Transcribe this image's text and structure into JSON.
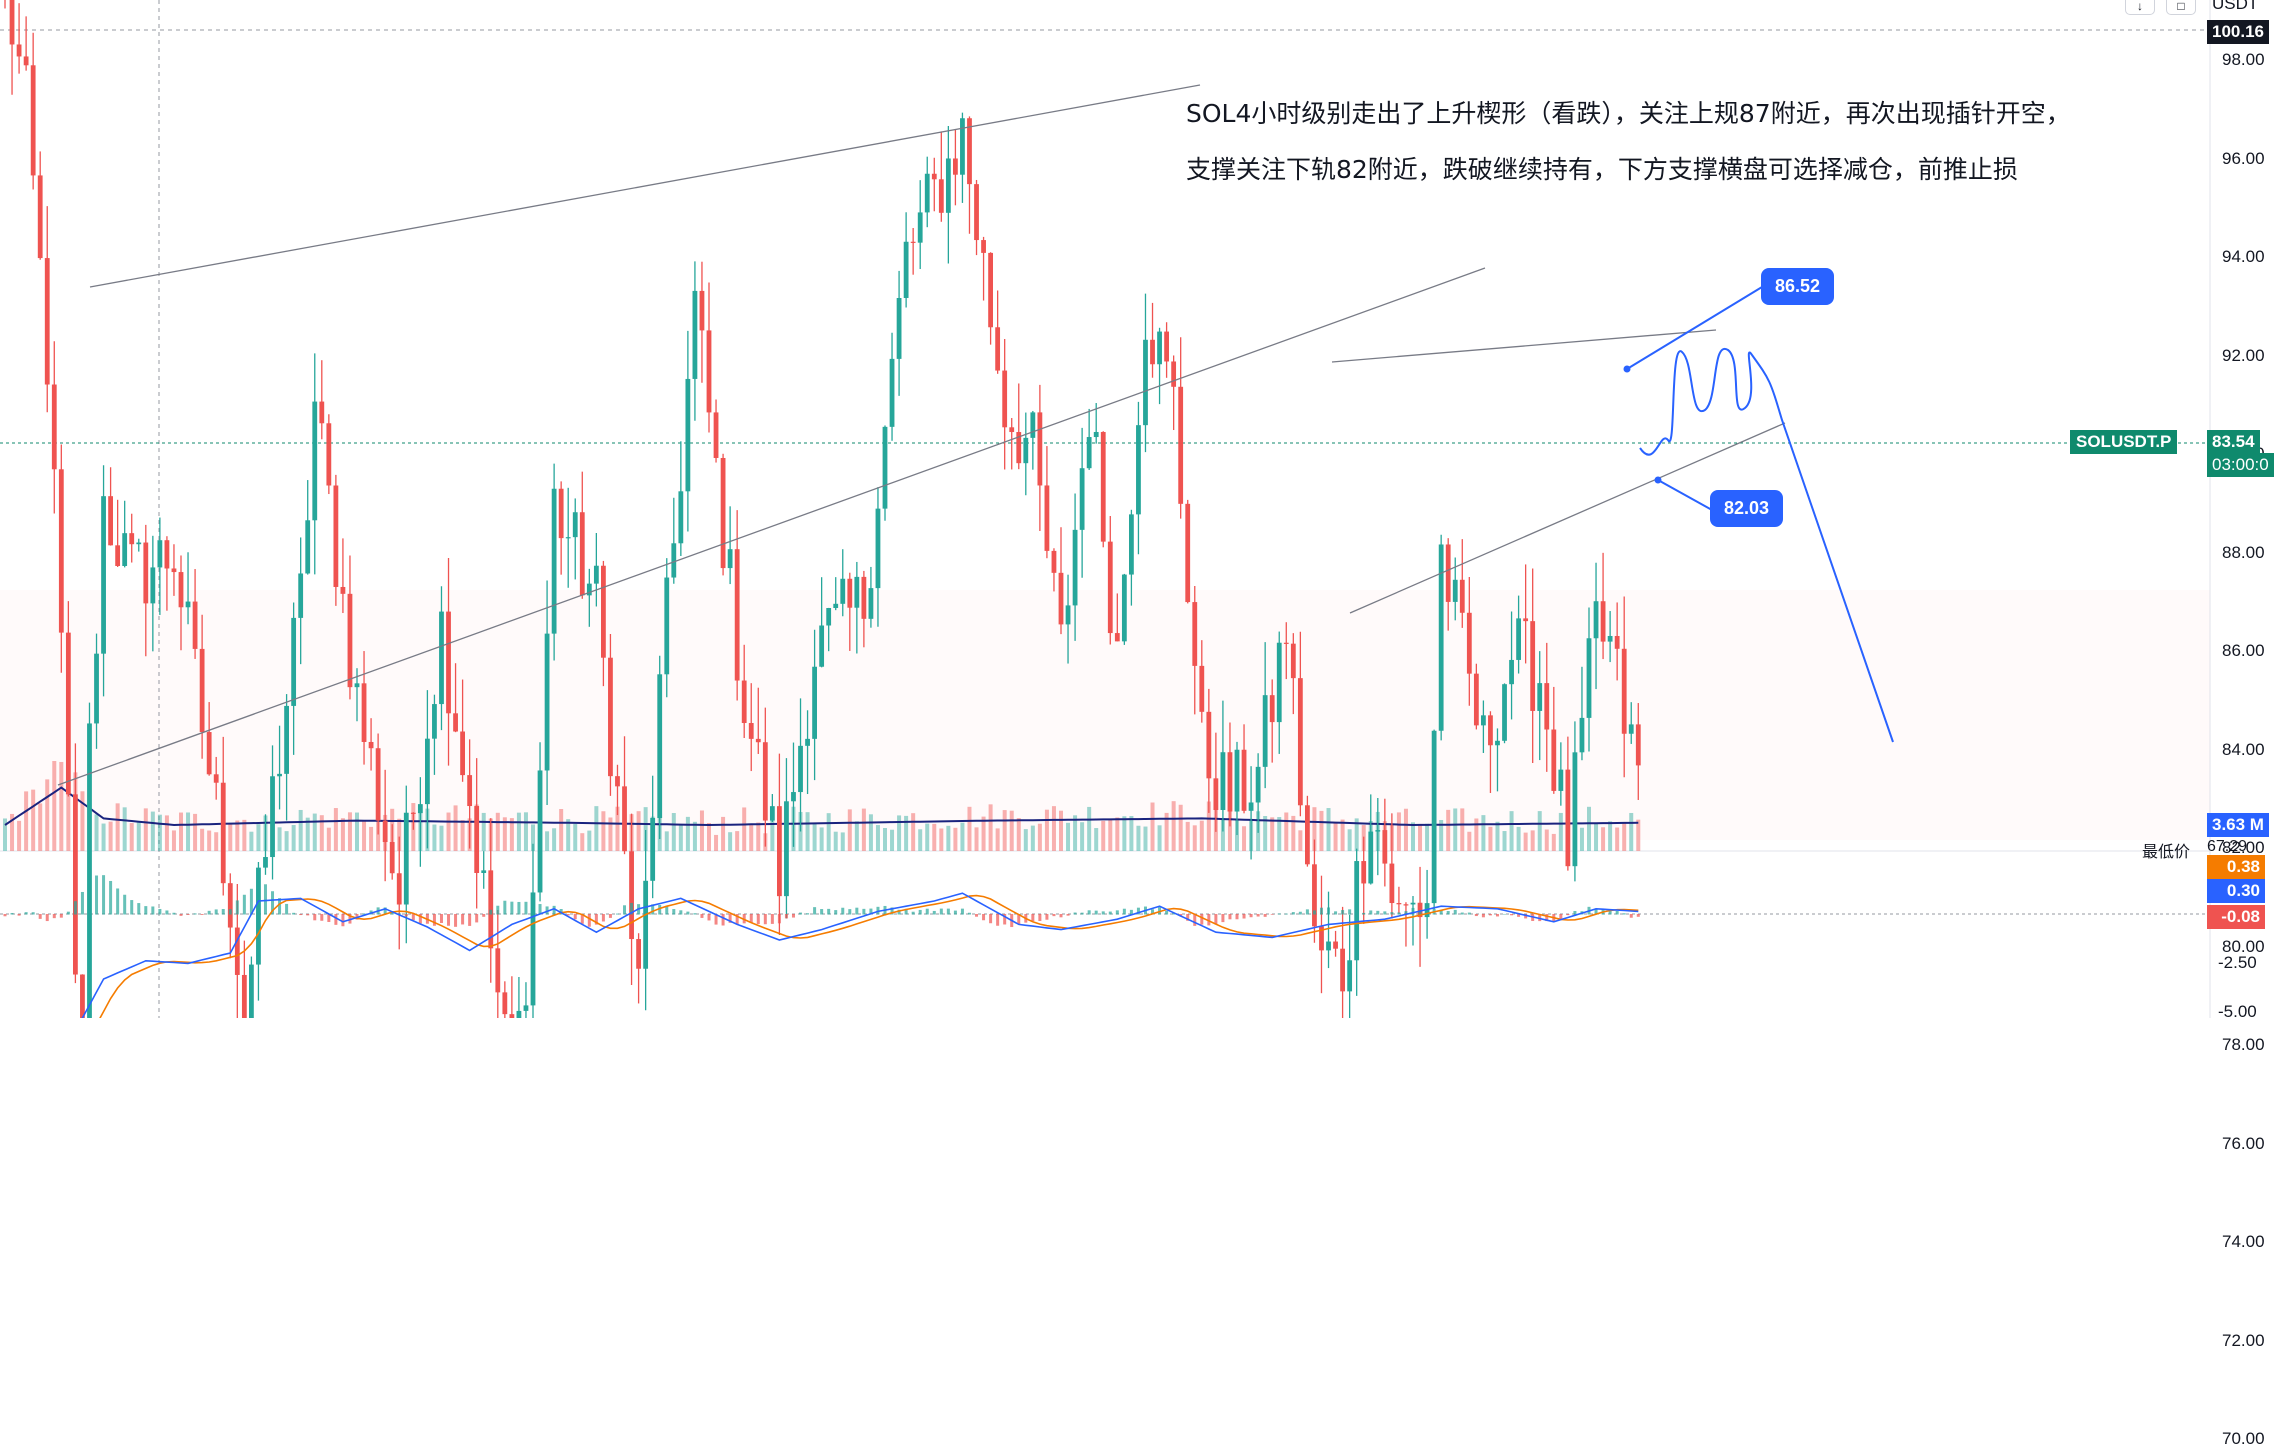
{
  "colors": {
    "up": "#26a69a",
    "down": "#ef5350",
    "line": "#2962ff",
    "macd_signal": "#f57c00",
    "price_tag": "#0f8a6d",
    "last_tag": "#000000"
  },
  "toolbar": {
    "currency": "USDT"
  },
  "annotation": {
    "line1": "SOL4小时级别走出了上升楔形（看跌），关注上规87附近，再次出现插针开空，",
    "line2": "支撑关注下轨82附近，跌破继续持有，下方支撑横盘可选择减仓，前推止损"
  },
  "callouts": {
    "upper": "86.52",
    "lower": "82.03"
  },
  "price_tags": {
    "top_price": "100.16",
    "symbol": "SOLUSDT.P",
    "price": "83.54",
    "countdown": "03:00:0",
    "volume": "3.63 M",
    "low_label": "最低价",
    "low_value": "67.29",
    "macd_hist": "0.38",
    "macd_line": "0.30",
    "macd_signal": "-0.08"
  },
  "price_axis_ticks": [
    "98.00",
    "96.00",
    "94.00",
    "92.00",
    "90.00",
    "88.00",
    "86.00",
    "84.00",
    "82.00",
    "80.00",
    "78.00",
    "76.00",
    "74.00",
    "72.00",
    "70.00"
  ],
  "macd_axis_ticks": [
    "-2.50",
    "-5.00"
  ],
  "chart_data": {
    "type": "candlestick",
    "symbol": "SOLUSDT.P",
    "ylim": [
      69,
      100.5
    ],
    "count": 260,
    "close_anchors": [
      [
        0,
        99.5
      ],
      [
        3,
        97
      ],
      [
        6,
        92
      ],
      [
        8,
        86
      ],
      [
        10,
        79
      ],
      [
        11,
        77.5
      ],
      [
        12,
        84
      ],
      [
        14,
        89
      ],
      [
        18,
        87.5
      ],
      [
        24,
        88
      ],
      [
        32,
        81
      ],
      [
        34,
        78.5
      ],
      [
        38,
        83
      ],
      [
        42,
        87
      ],
      [
        44,
        91
      ],
      [
        50,
        85
      ],
      [
        56,
        81
      ],
      [
        62,
        86.5
      ],
      [
        66,
        83
      ],
      [
        72,
        77
      ],
      [
        75,
        81
      ],
      [
        78,
        89
      ],
      [
        84,
        87
      ],
      [
        90,
        79
      ],
      [
        93,
        85
      ],
      [
        98,
        93
      ],
      [
        105,
        85
      ],
      [
        110,
        81.5
      ],
      [
        115,
        86
      ],
      [
        122,
        87
      ],
      [
        128,
        94
      ],
      [
        136,
        96.5
      ],
      [
        142,
        91
      ],
      [
        146,
        90
      ],
      [
        150,
        86
      ],
      [
        154,
        91
      ],
      [
        158,
        86
      ],
      [
        162,
        93
      ],
      [
        166,
        91
      ],
      [
        170,
        84
      ],
      [
        174,
        83
      ],
      [
        178,
        83.5
      ],
      [
        182,
        86.5
      ],
      [
        186,
        80
      ],
      [
        190,
        79.5
      ],
      [
        194,
        83
      ],
      [
        198,
        80.5
      ],
      [
        202,
        81
      ],
      [
        204,
        88
      ],
      [
        210,
        84
      ],
      [
        214,
        86
      ],
      [
        218,
        85.5
      ],
      [
        222,
        82
      ],
      [
        226,
        86.5
      ],
      [
        228,
        86
      ],
      [
        231,
        84
      ],
      [
        232,
        83.5
      ]
    ],
    "macd_anchors": [
      [
        0,
        -5
      ],
      [
        8,
        -5.5
      ],
      [
        14,
        -2.5
      ],
      [
        20,
        -1.8
      ],
      [
        26,
        -1.9
      ],
      [
        32,
        -1.5
      ],
      [
        36,
        0.5
      ],
      [
        42,
        0.6
      ],
      [
        48,
        -0.3
      ],
      [
        54,
        0.2
      ],
      [
        60,
        -0.5
      ],
      [
        66,
        -1.4
      ],
      [
        72,
        -0.4
      ],
      [
        78,
        0.2
      ],
      [
        84,
        -0.7
      ],
      [
        90,
        0.2
      ],
      [
        96,
        0.6
      ],
      [
        104,
        -0.4
      ],
      [
        110,
        -1
      ],
      [
        116,
        -0.6
      ],
      [
        124,
        0.1
      ],
      [
        132,
        0.5
      ],
      [
        136,
        0.8
      ],
      [
        144,
        -0.4
      ],
      [
        150,
        -0.6
      ],
      [
        158,
        -0.2
      ],
      [
        164,
        0.3
      ],
      [
        172,
        -0.7
      ],
      [
        180,
        -0.9
      ],
      [
        188,
        -0.4
      ],
      [
        196,
        -0.2
      ],
      [
        204,
        0.3
      ],
      [
        212,
        0.2
      ],
      [
        220,
        -0.3
      ],
      [
        226,
        0.2
      ],
      [
        232,
        0.1
      ]
    ],
    "volume_anchors": [
      [
        0,
        0.5
      ],
      [
        8,
        2.2
      ],
      [
        14,
        0.8
      ],
      [
        24,
        0.5
      ],
      [
        50,
        0.7
      ],
      [
        80,
        0.6
      ],
      [
        100,
        0.5
      ],
      [
        140,
        0.7
      ],
      [
        170,
        0.8
      ],
      [
        200,
        0.5
      ],
      [
        232,
        0.6
      ]
    ],
    "drawn_levels": {
      "big_wedge_upper": [
        [
          90,
          98
        ],
        [
          1200,
          98.3
        ]
      ],
      "big_wedge_lower": [
        [
          58,
          69.8
        ],
        [
          1485,
          90.5
        ]
      ],
      "small_wedge_upper": [
        [
          1332,
          87.4
        ],
        [
          1716,
          88.2
        ]
      ],
      "small_wedge_lower": [
        [
          1350,
          76.6
        ],
        [
          1785,
          84.3
        ]
      ]
    }
  }
}
